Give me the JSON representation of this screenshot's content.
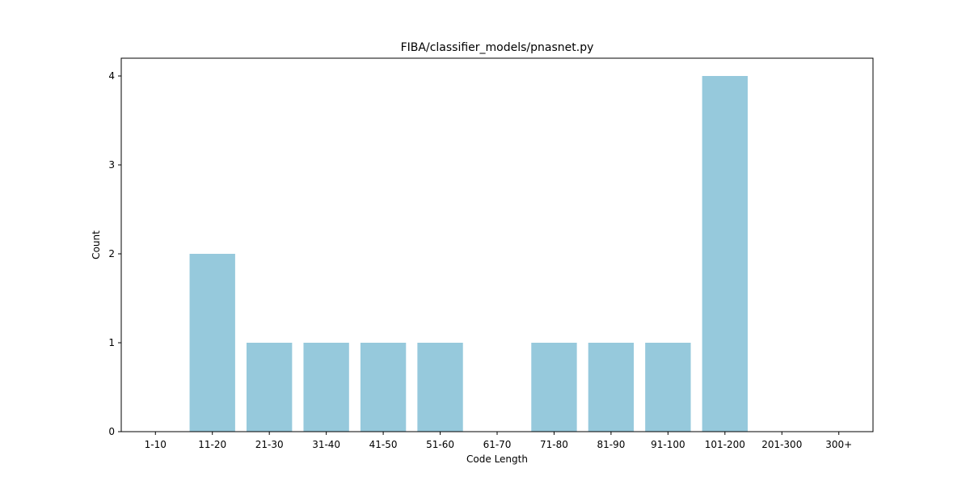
{
  "chart_data": {
    "type": "bar",
    "title": "FIBA/classifier_models/pnasnet.py",
    "xlabel": "Code Length",
    "ylabel": "Count",
    "categories": [
      "1-10",
      "11-20",
      "21-30",
      "31-40",
      "41-50",
      "51-60",
      "61-70",
      "71-80",
      "81-90",
      "91-100",
      "101-200",
      "201-300",
      "300+"
    ],
    "values": [
      0,
      2,
      1,
      1,
      1,
      1,
      0,
      1,
      1,
      1,
      4,
      0,
      0
    ],
    "ylim": [
      0,
      4.2
    ],
    "yticks": [
      "0",
      "1",
      "2",
      "3",
      "4"
    ],
    "grid": false,
    "bar_color": "#96c9dc"
  }
}
